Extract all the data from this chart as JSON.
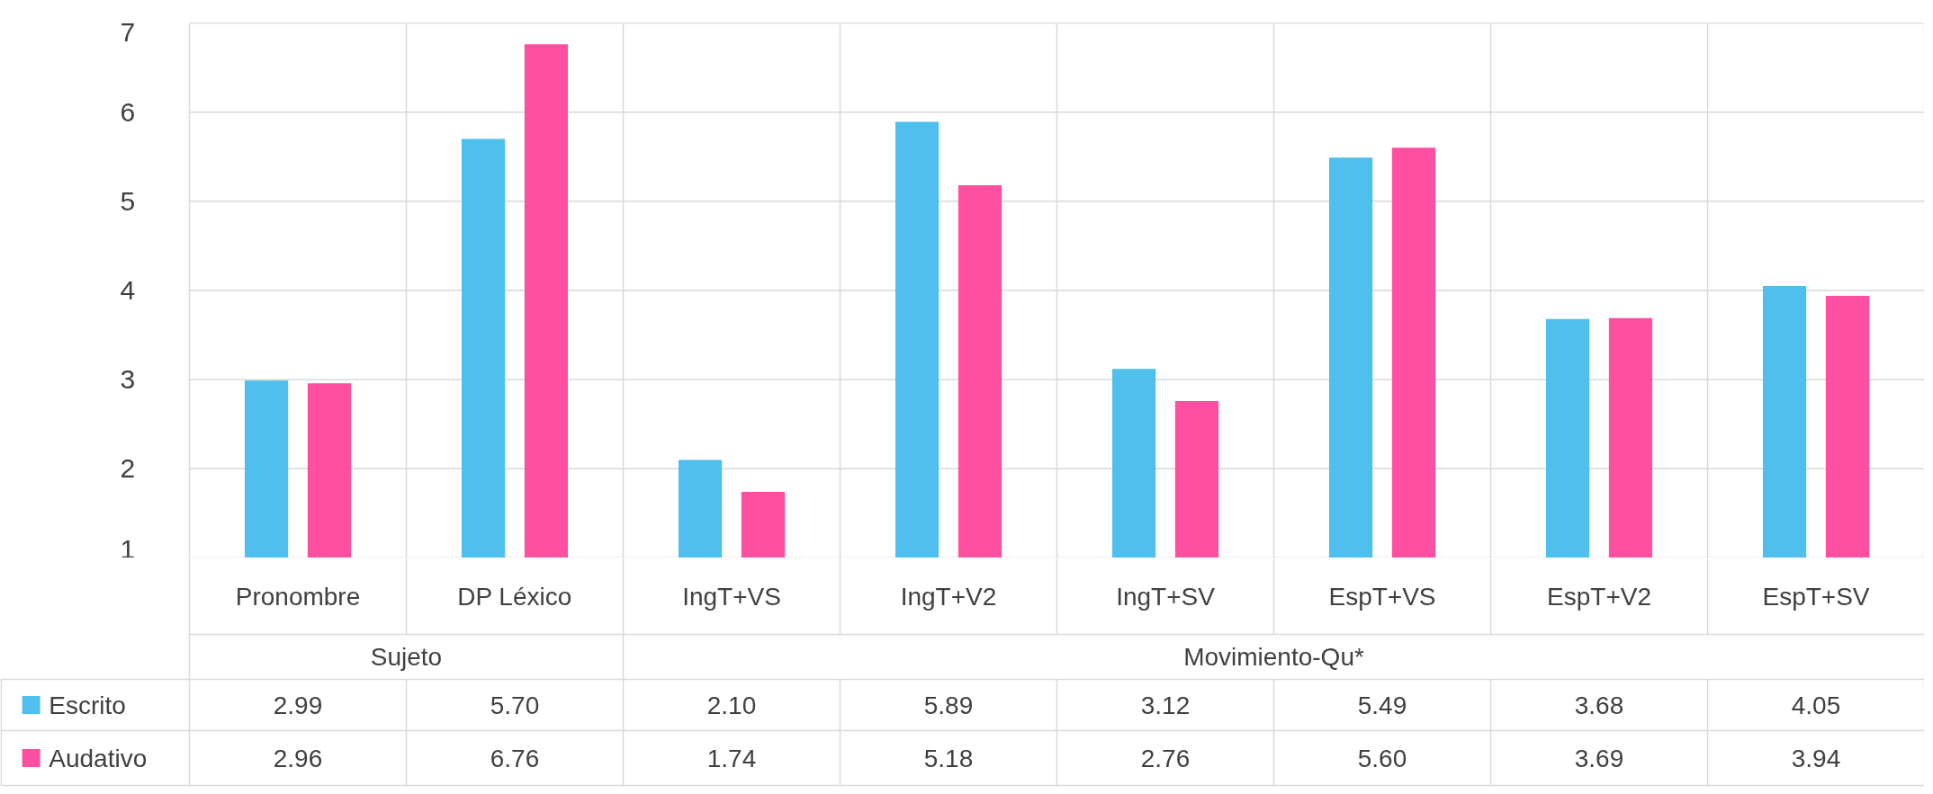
{
  "chart_data": {
    "type": "bar",
    "categories": [
      "Pronombre",
      "DP Léxico",
      "IngT+VS",
      "IngT+V2",
      "IngT+SV",
      "EspT+VS",
      "EspT+V2",
      "EspT+SV"
    ],
    "series": [
      {
        "name": "Escrito",
        "color": "#4fbfed",
        "values": [
          2.99,
          5.7,
          2.1,
          5.89,
          3.12,
          5.49,
          3.68,
          4.05
        ],
        "value_labels": [
          "2.99",
          "5.70",
          "2.10",
          "5.89",
          "3.12",
          "5.49",
          "3.68",
          "4.05"
        ]
      },
      {
        "name": "Audativo",
        "color": "#ff4fa0",
        "values": [
          2.96,
          6.76,
          1.74,
          5.18,
          2.76,
          5.6,
          3.69,
          3.94
        ],
        "value_labels": [
          "2.96",
          "6.76",
          "1.74",
          "5.18",
          "2.76",
          "5.60",
          "3.69",
          "3.94"
        ]
      }
    ],
    "annotations": [
      "Sujeto",
      "Movimiento-Qu*"
    ],
    "ylim": [
      1,
      7
    ],
    "yticks": [
      1,
      2,
      3,
      4,
      5,
      6,
      7
    ],
    "grid": true,
    "legend": "bottom left"
  }
}
